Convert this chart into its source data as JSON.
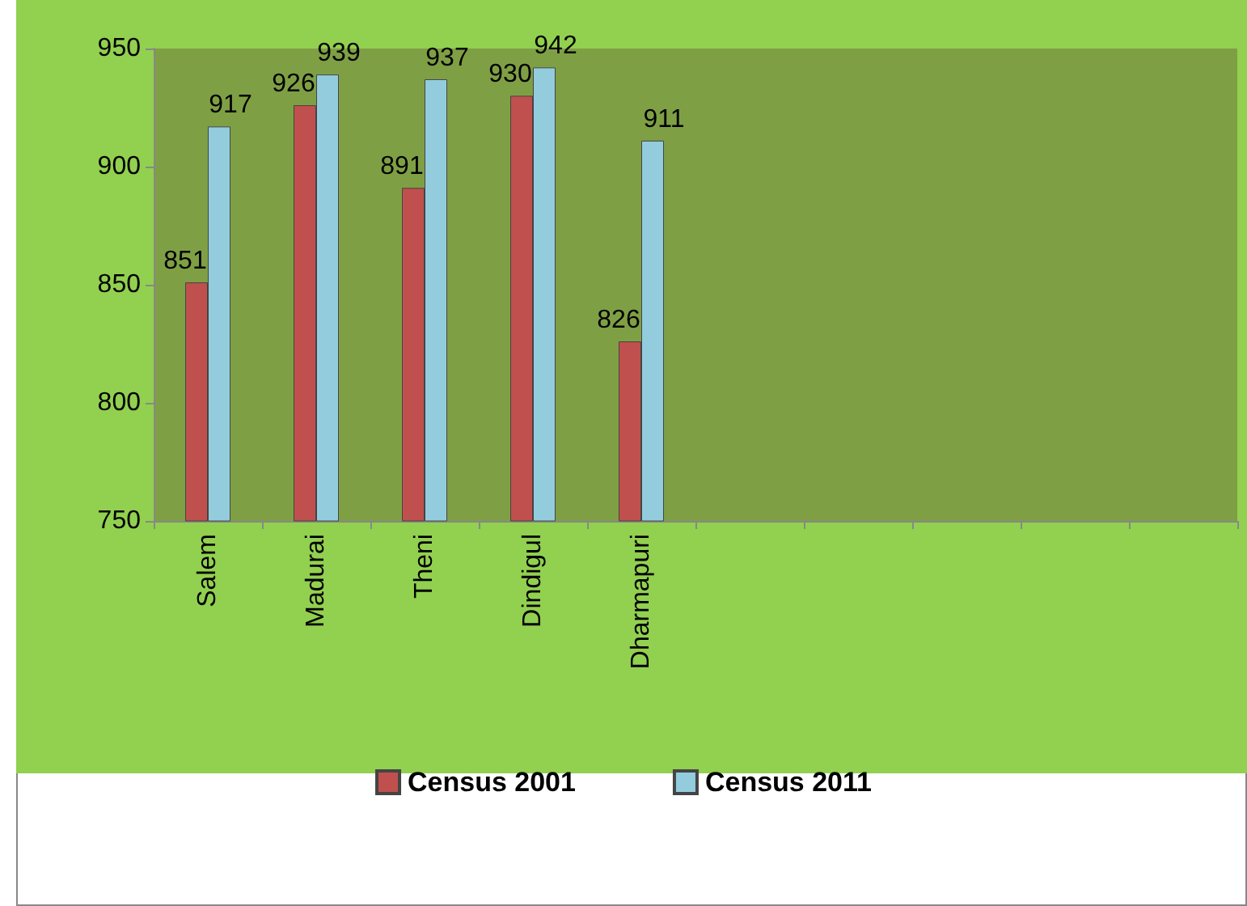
{
  "chart_data": {
    "type": "bar",
    "categories": [
      "Salem",
      "Madurai",
      "Theni",
      "Dindigul",
      "Dharmapuri",
      null,
      null,
      null,
      null,
      null
    ],
    "series": [
      {
        "name": "Census 2001",
        "color": "#c0504d",
        "values": [
          851,
          926,
          891,
          930,
          826,
          null,
          null,
          null,
          null,
          null
        ]
      },
      {
        "name": "Census 2011",
        "color": "#93cddd",
        "values": [
          917,
          939,
          937,
          942,
          911,
          null,
          null,
          null,
          null,
          null
        ]
      }
    ],
    "ylim": [
      750,
      950
    ],
    "yticks": [
      750,
      800,
      850,
      900,
      950
    ],
    "data_labels": true,
    "legend": "bottom",
    "grid": false
  }
}
